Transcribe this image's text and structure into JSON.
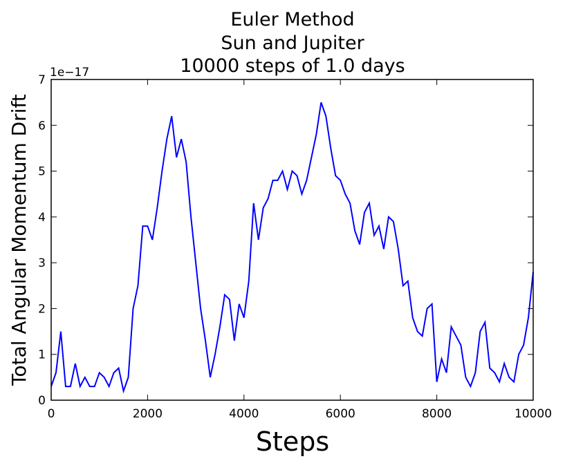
{
  "chart_data": {
    "type": "line",
    "title_lines": [
      "Euler Method",
      "Sun and Jupiter",
      "10000 steps of 1.0 days"
    ],
    "xlabel": "Steps",
    "ylabel": "Total Angular Momentum Drift",
    "y_offset_label": "1e−17",
    "x": [
      0,
      100,
      200,
      300,
      400,
      500,
      600,
      700,
      800,
      900,
      1000,
      1100,
      1200,
      1300,
      1400,
      1500,
      1600,
      1700,
      1800,
      1900,
      2000,
      2100,
      2200,
      2300,
      2400,
      2500,
      2600,
      2700,
      2800,
      2900,
      3000,
      3100,
      3200,
      3300,
      3400,
      3500,
      3600,
      3700,
      3800,
      3900,
      4000,
      4100,
      4200,
      4300,
      4400,
      4500,
      4600,
      4700,
      4800,
      4900,
      5000,
      5100,
      5200,
      5300,
      5400,
      5500,
      5600,
      5700,
      5800,
      5900,
      6000,
      6100,
      6200,
      6300,
      6400,
      6500,
      6600,
      6700,
      6800,
      6900,
      7000,
      7100,
      7200,
      7300,
      7400,
      7500,
      7600,
      7700,
      7800,
      7900,
      8000,
      8100,
      8200,
      8300,
      8400,
      8500,
      8600,
      8700,
      8800,
      8900,
      9000,
      9100,
      9200,
      9300,
      9400,
      9500,
      9600,
      9700,
      9800,
      9900,
      10000
    ],
    "series": [
      {
        "color": "#0000ff",
        "values": [
          0.3,
          0.6,
          1.5,
          0.3,
          0.3,
          0.8,
          0.3,
          0.5,
          0.3,
          0.3,
          0.6,
          0.5,
          0.3,
          0.6,
          0.7,
          0.2,
          0.5,
          2.0,
          2.5,
          3.8,
          3.8,
          3.5,
          4.2,
          5.0,
          5.7,
          6.2,
          5.3,
          5.7,
          5.2,
          4.0,
          3.0,
          2.0,
          1.3,
          0.5,
          1.0,
          1.6,
          2.3,
          2.2,
          1.3,
          2.1,
          1.8,
          2.6,
          4.3,
          3.5,
          4.2,
          4.4,
          4.8,
          4.8,
          5.0,
          4.6,
          5.0,
          4.9,
          4.5,
          4.8,
          5.3,
          5.8,
          6.5,
          6.2,
          5.5,
          4.9,
          4.8,
          4.5,
          4.3,
          3.7,
          3.4,
          4.1,
          4.3,
          3.6,
          3.8,
          3.3,
          4.0,
          3.9,
          3.3,
          2.5,
          2.6,
          1.8,
          1.5,
          1.4,
          2.0,
          2.1,
          0.4,
          0.9,
          0.6,
          1.6,
          1.4,
          1.2,
          0.5,
          0.3,
          0.6,
          1.5,
          1.7,
          0.7,
          0.6,
          0.4,
          0.8,
          0.5,
          0.4,
          1.0,
          1.2,
          1.8,
          2.8
        ]
      }
    ],
    "xlim": [
      0,
      10000
    ],
    "xticks": [
      0,
      2000,
      4000,
      6000,
      8000,
      10000
    ],
    "ylim": [
      0,
      7
    ],
    "yticks": [
      0,
      1,
      2,
      3,
      4,
      5,
      6,
      7
    ],
    "grid": false
  }
}
